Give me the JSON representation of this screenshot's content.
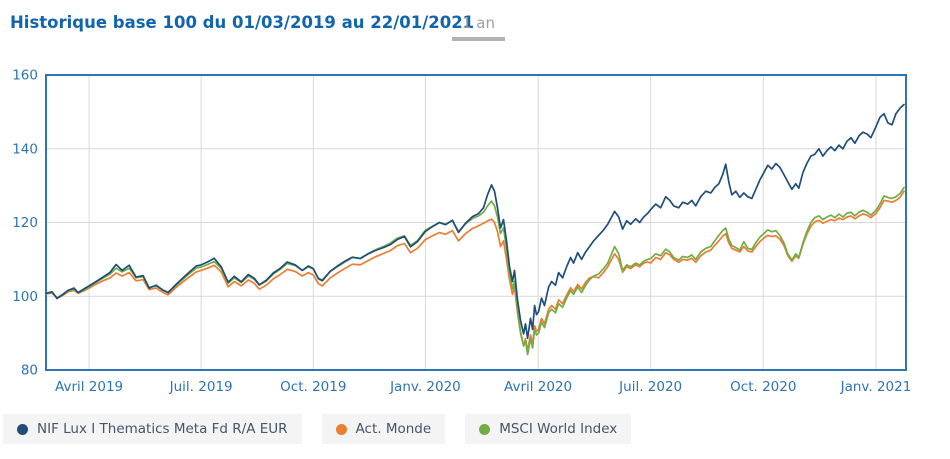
{
  "header": {
    "title": "Historique base 100 du 01/03/2019 au 22/01/2021",
    "period_tab": "1 an"
  },
  "colors": {
    "title_text": "#1165af",
    "axis_text": "#2e74b5",
    "plot_frame": "#2e75b6",
    "gridline": "#d9d9d9",
    "tab_text": "#9e9e9e",
    "tab_underline": "#b3b3b3",
    "legend_text": "#44546a",
    "legend_chip_bg": "#f4f4f4"
  },
  "chart_data": {
    "type": "line",
    "title": "Historique base 100 du 01/03/2019 au 22/01/2021",
    "xlabel": "",
    "ylabel": "",
    "grid": true,
    "legend_position": "bottom",
    "y_axis": {
      "min": 80,
      "max": 160,
      "ticks": [
        80,
        100,
        120,
        140,
        160
      ]
    },
    "x_axis": {
      "ticks": [
        {
          "label": "Avril 2019",
          "pos": 0.0501
        },
        {
          "label": "Juil. 2019",
          "pos": 0.1804
        },
        {
          "label": "Oct. 2019",
          "pos": 0.3108
        },
        {
          "label": "Janv. 2020",
          "pos": 0.4412
        },
        {
          "label": "Avril 2020",
          "pos": 0.5722
        },
        {
          "label": "Juil. 2020",
          "pos": 0.7031
        },
        {
          "label": "Oct. 2020",
          "pos": 0.8341
        },
        {
          "label": "Janv. 2021",
          "pos": 0.9651
        }
      ]
    },
    "pos": [
      0.0,
      0.007,
      0.0128,
      0.0186,
      0.0256,
      0.0326,
      0.0373,
      0.0442,
      0.0501,
      0.0582,
      0.0663,
      0.0745,
      0.0815,
      0.0885,
      0.0966,
      0.1048,
      0.1129,
      0.1199,
      0.1281,
      0.1362,
      0.142,
      0.1513,
      0.163,
      0.1746,
      0.1804,
      0.1886,
      0.1956,
      0.2037,
      0.2119,
      0.2189,
      0.227,
      0.2352,
      0.2421,
      0.248,
      0.2561,
      0.2643,
      0.2724,
      0.2805,
      0.2899,
      0.298,
      0.305,
      0.3108,
      0.3166,
      0.3213,
      0.3306,
      0.3388,
      0.3481,
      0.3562,
      0.3655,
      0.3748,
      0.383,
      0.3923,
      0.4005,
      0.4086,
      0.4168,
      0.4238,
      0.4319,
      0.4412,
      0.4494,
      0.4575,
      0.4645,
      0.4726,
      0.4796,
      0.4878,
      0.4959,
      0.5029,
      0.5087,
      0.5134,
      0.518,
      0.5215,
      0.525,
      0.5285,
      0.532,
      0.5355,
      0.539,
      0.5425,
      0.5448,
      0.5483,
      0.5518,
      0.5553,
      0.5576,
      0.56,
      0.5634,
      0.5658,
      0.5681,
      0.5704,
      0.5728,
      0.5762,
      0.5797,
      0.5844,
      0.5879,
      0.5925,
      0.596,
      0.6007,
      0.6053,
      0.61,
      0.6135,
      0.6182,
      0.6228,
      0.6275,
      0.6321,
      0.6368,
      0.6426,
      0.6484,
      0.6531,
      0.6577,
      0.6612,
      0.6659,
      0.6705,
      0.6752,
      0.6798,
      0.6857,
      0.6903,
      0.695,
      0.6996,
      0.7031,
      0.709,
      0.7148,
      0.7206,
      0.7253,
      0.7299,
      0.7357,
      0.7404,
      0.7462,
      0.7509,
      0.7555,
      0.7613,
      0.7672,
      0.773,
      0.7776,
      0.7823,
      0.7869,
      0.7904,
      0.7939,
      0.7974,
      0.8021,
      0.8067,
      0.8114,
      0.8161,
      0.8207,
      0.8254,
      0.83,
      0.8347,
      0.8393,
      0.844,
      0.8487,
      0.8533,
      0.858,
      0.8626,
      0.8673,
      0.8719,
      0.8754,
      0.8801,
      0.8847,
      0.8894,
      0.894,
      0.8987,
      0.9034,
      0.908,
      0.9127,
      0.9173,
      0.922,
      0.9266,
      0.9313,
      0.936,
      0.9406,
      0.9453,
      0.9499,
      0.9546,
      0.9592,
      0.9651,
      0.9697,
      0.9744,
      0.979,
      0.9837,
      0.9883,
      0.993,
      0.9977
    ],
    "series": [
      {
        "id": "nif",
        "name": "NIF Lux I Thematics Meta Fd R/A EUR",
        "color": "#1f4e79",
        "values": [
          100.8,
          101.2,
          99.4,
          100.3,
          101.6,
          102.2,
          101.0,
          102.0,
          102.8,
          104.0,
          105.2,
          106.5,
          108.6,
          107.0,
          108.4,
          105.2,
          105.6,
          102.2,
          103.0,
          101.6,
          101.0,
          103.2,
          105.8,
          108.2,
          108.5,
          109.4,
          110.3,
          108.0,
          103.8,
          105.4,
          103.9,
          105.9,
          104.9,
          103.1,
          104.3,
          106.3,
          107.6,
          109.3,
          108.5,
          107.0,
          108.2,
          107.5,
          104.8,
          104.2,
          106.8,
          108.2,
          109.6,
          110.6,
          110.2,
          111.5,
          112.4,
          113.2,
          114.0,
          115.4,
          116.2,
          113.4,
          114.8,
          117.6,
          118.9,
          120.0,
          119.4,
          120.6,
          117.3,
          119.8,
          121.6,
          122.4,
          124.0,
          127.5,
          130.2,
          128.5,
          124.0,
          118.5,
          120.8,
          115.0,
          108.0,
          104.0,
          107.0,
          99.0,
          93.5,
          89.8,
          92.5,
          88.6,
          94.0,
          91.0,
          97.5,
          95.0,
          95.8,
          99.5,
          97.5,
          102.5,
          104.0,
          103.0,
          106.4,
          105.0,
          108.0,
          110.5,
          109.0,
          111.8,
          110.0,
          112.0,
          113.5,
          115.0,
          116.5,
          118.0,
          119.5,
          121.5,
          123.0,
          121.5,
          118.2,
          120.5,
          119.5,
          121.0,
          120.0,
          121.5,
          122.5,
          123.5,
          125.0,
          124.0,
          127.0,
          126.0,
          124.5,
          124.0,
          125.5,
          125.0,
          126.0,
          124.5,
          127.0,
          128.5,
          128.0,
          129.5,
          130.5,
          133.0,
          135.8,
          131.0,
          127.5,
          128.5,
          126.8,
          128.0,
          127.0,
          126.5,
          129.0,
          131.5,
          133.5,
          135.5,
          134.5,
          136.0,
          135.0,
          133.0,
          131.0,
          129.0,
          130.5,
          129.3,
          133.5,
          136.0,
          138.0,
          138.5,
          140.0,
          138.0,
          139.5,
          140.5,
          139.5,
          141.0,
          140.0,
          142.0,
          143.0,
          141.5,
          143.5,
          144.5,
          144.0,
          143.0,
          146.0,
          148.5,
          149.5,
          147.0,
          146.5,
          149.5,
          151.0,
          152.0
        ]
      },
      {
        "id": "act-monde",
        "name": "Act. Monde",
        "color": "#ed7d31",
        "values": [
          100.6,
          100.9,
          99.5,
          100.1,
          101.2,
          101.6,
          100.8,
          101.5,
          102.2,
          103.3,
          104.2,
          105.0,
          106.3,
          105.5,
          106.4,
          104.2,
          104.5,
          101.8,
          102.2,
          101.0,
          100.4,
          102.4,
          104.6,
          106.6,
          107.0,
          107.7,
          108.4,
          106.6,
          102.6,
          104.0,
          102.8,
          104.4,
          103.5,
          101.9,
          103.0,
          104.7,
          105.9,
          107.3,
          106.7,
          105.5,
          106.4,
          105.8,
          103.4,
          102.8,
          105.0,
          106.3,
          107.6,
          108.7,
          108.5,
          109.7,
          110.7,
          111.6,
          112.4,
          113.7,
          114.3,
          111.8,
          113.0,
          115.4,
          116.4,
          117.3,
          116.8,
          117.8,
          115.0,
          117.0,
          118.4,
          119.1,
          119.8,
          120.4,
          120.9,
          120.0,
          117.5,
          113.5,
          115.0,
          110.0,
          104.5,
          100.5,
          102.5,
          95.5,
          90.0,
          86.5,
          88.5,
          85.3,
          89.5,
          87.0,
          92.0,
          90.5,
          91.0,
          94.0,
          92.5,
          96.5,
          97.5,
          96.5,
          99.0,
          98.0,
          100.3,
          102.3,
          101.3,
          103.2,
          102.0,
          103.8,
          105.0,
          105.3,
          105.0,
          106.5,
          108.0,
          110.0,
          111.5,
          110.0,
          106.5,
          108.0,
          107.5,
          108.5,
          108.0,
          109.0,
          109.3,
          109.0,
          110.5,
          110.0,
          111.8,
          111.2,
          110.0,
          109.2,
          110.0,
          109.8,
          110.3,
          109.2,
          111.0,
          112.0,
          112.5,
          113.8,
          115.0,
          116.3,
          117.0,
          114.5,
          113.0,
          112.5,
          112.0,
          113.5,
          112.3,
          112.0,
          113.5,
          114.8,
          115.8,
          116.5,
          116.2,
          116.4,
          115.5,
          113.8,
          111.0,
          109.5,
          111.0,
          110.3,
          114.0,
          116.8,
          119.0,
          120.2,
          120.6,
          119.8,
          120.3,
          120.8,
          120.5,
          121.2,
          120.8,
          121.5,
          121.8,
          121.0,
          121.8,
          122.3,
          122.0,
          121.3,
          122.5,
          124.0,
          126.0,
          125.8,
          125.5,
          126.0,
          126.8,
          128.5
        ]
      },
      {
        "id": "msci",
        "name": "MSCI World Index",
        "color": "#70ad47",
        "values": [
          100.7,
          101.1,
          99.6,
          100.4,
          101.5,
          102.0,
          101.0,
          101.8,
          102.5,
          103.8,
          104.9,
          106.0,
          107.6,
          106.6,
          107.6,
          105.0,
          105.3,
          102.4,
          102.8,
          101.7,
          101.1,
          103.0,
          105.4,
          107.6,
          107.9,
          108.7,
          109.4,
          107.6,
          103.5,
          105.0,
          103.7,
          105.5,
          104.6,
          103.0,
          104.1,
          106.0,
          107.3,
          108.9,
          108.3,
          107.0,
          108.0,
          107.4,
          104.9,
          104.4,
          106.7,
          108.0,
          109.4,
          110.5,
          110.3,
          111.6,
          112.6,
          113.5,
          114.4,
          115.8,
          116.4,
          113.8,
          115.1,
          117.9,
          119.0,
          120.0,
          119.5,
          120.5,
          117.6,
          119.6,
          121.1,
          121.8,
          122.8,
          124.5,
          125.8,
          124.5,
          121.5,
          117.0,
          118.5,
          113.0,
          106.5,
          102.0,
          104.0,
          96.5,
          90.5,
          86.5,
          88.0,
          84.2,
          88.5,
          86.0,
          91.0,
          89.5,
          90.0,
          93.0,
          91.5,
          95.5,
          96.5,
          95.5,
          98.0,
          97.0,
          99.5,
          101.5,
          100.5,
          102.5,
          101.0,
          103.0,
          104.5,
          105.5,
          106.0,
          107.5,
          109.0,
          111.5,
          113.5,
          111.5,
          107.0,
          108.5,
          108.0,
          109.0,
          108.5,
          109.5,
          110.0,
          110.2,
          111.5,
          111.0,
          112.8,
          112.0,
          110.5,
          109.8,
          110.8,
          110.5,
          111.2,
          110.0,
          112.0,
          113.0,
          113.5,
          115.0,
          116.5,
          117.8,
          118.5,
          115.5,
          113.8,
          113.2,
          112.5,
          114.8,
          113.0,
          112.7,
          114.5,
          116.0,
          117.0,
          118.0,
          117.5,
          117.8,
          116.5,
          114.5,
          111.5,
          109.8,
          111.5,
          110.5,
          114.5,
          117.5,
          120.0,
          121.3,
          121.8,
          120.8,
          121.5,
          122.0,
          121.3,
          122.3,
          121.5,
          122.5,
          122.8,
          121.8,
          122.8,
          123.3,
          122.8,
          122.0,
          123.3,
          125.0,
          127.2,
          126.8,
          126.5,
          127.0,
          127.8,
          129.5
        ]
      }
    ]
  },
  "legend": {
    "items": [
      {
        "label": "NIF Lux I Thematics Meta Fd R/A EUR",
        "series": 0
      },
      {
        "label": "Act. Monde",
        "series": 1
      },
      {
        "label": "MSCI World Index",
        "series": 2
      }
    ]
  }
}
